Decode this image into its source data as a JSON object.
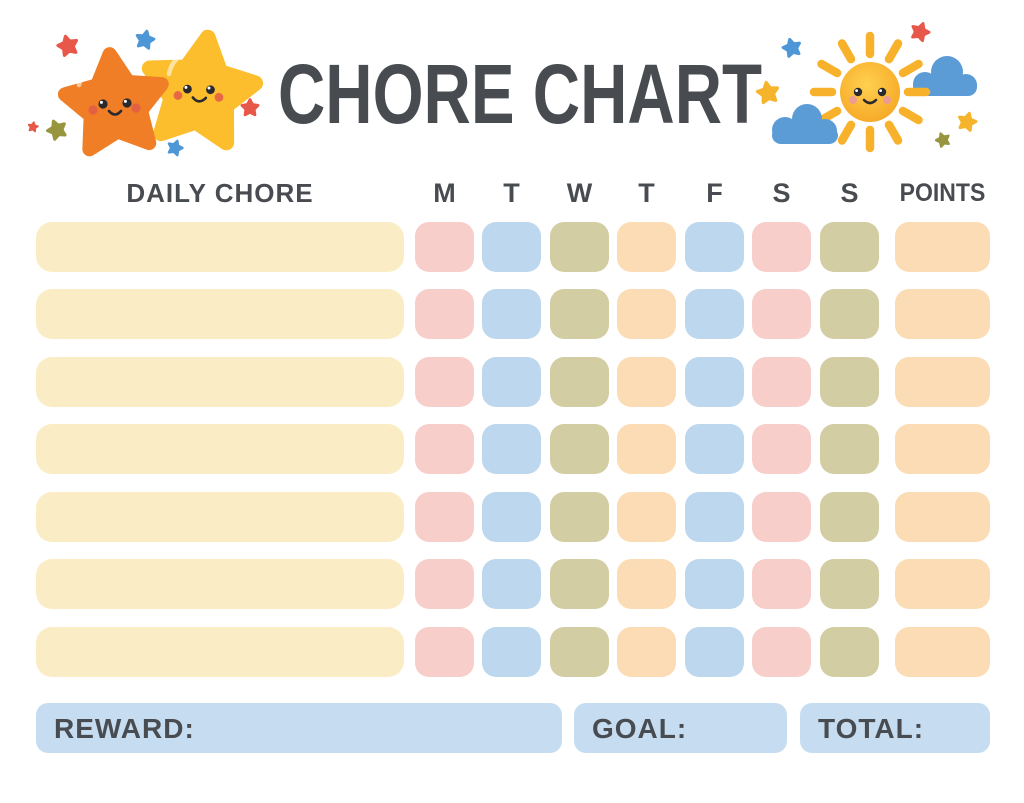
{
  "title": "CHORE CHART",
  "table": {
    "chore_header": "DAILY CHORE",
    "points_header": "POINTS",
    "day_headers": [
      "M",
      "T",
      "W",
      "T",
      "F",
      "S",
      "S"
    ],
    "row_count": 7,
    "chore_color": "cream",
    "column_colors": [
      "pink",
      "blue",
      "olive",
      "peach",
      "blue",
      "pink",
      "olive"
    ],
    "points_color": "peach"
  },
  "footer": {
    "reward_label": "REWARD:",
    "goal_label": "GOAL:",
    "total_label": "TOTAL:"
  },
  "colors": {
    "cream": "#FAEDC5",
    "pink": "#F8CECA",
    "blue": "#BDD7EE",
    "olive": "#D2CDA2",
    "peach": "#FBDCB4",
    "footer_blue": "#C5DCF1",
    "text": "#484C51",
    "star_orange": "#F07E26",
    "star_yellow": "#FCBE2D",
    "sun_yellow": "#F8B12A",
    "cloud_blue": "#5C9CD6",
    "accent_red": "#E8584A",
    "accent_blue": "#4E97D6",
    "accent_olive": "#98953F",
    "accent_yellow": "#F6B42C",
    "cheek_red": "#E25B49",
    "eye_black": "#2A2A2E"
  },
  "decorations": {
    "left": "two-smiling-stars",
    "right": "smiling-sun-with-clouds"
  }
}
